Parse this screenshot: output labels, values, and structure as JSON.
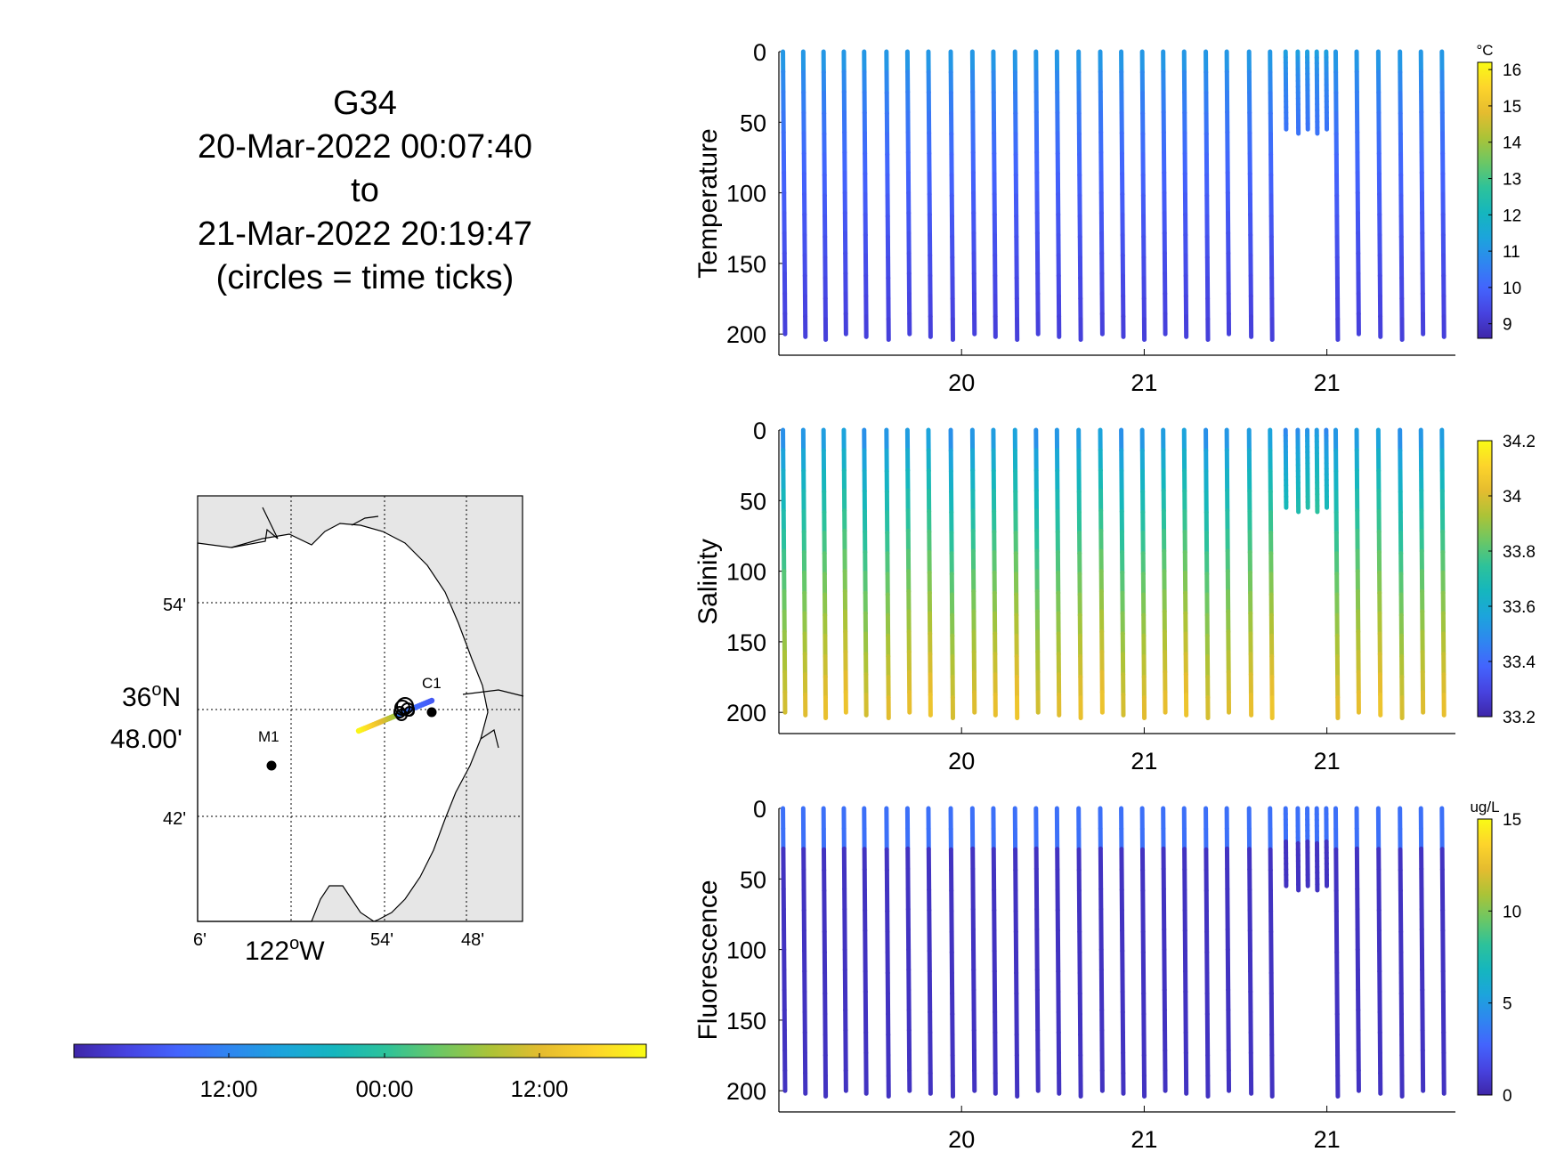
{
  "header": {
    "glider": "G34",
    "start": "20-Mar-2022 00:07:40",
    "to": "to",
    "end": "21-Mar-2022 20:19:47",
    "note": "(circles = time ticks)"
  },
  "colors": {
    "parula": [
      "#3e26a8",
      "#4743e0",
      "#4364fd",
      "#2f86f0",
      "#1ca4dc",
      "#15b6be",
      "#2dc29a",
      "#6bc765",
      "#abc337",
      "#e5bc2f",
      "#fdd42b",
      "#f9fb15"
    ],
    "map_land": "#e6e6e6",
    "station_dot": "#000000"
  },
  "map": {
    "lat_ticks": [
      "54'",
      "36°N 48.00'",
      "42'"
    ],
    "lat_label_line1": "36",
    "lat_label_sup": "o",
    "lat_label_suffix": "N",
    "lat_label_line2": "48.00'",
    "lon_ticks": [
      "6'",
      "54'",
      "48'"
    ],
    "lon_label_main": "122",
    "lon_label_sup": "o",
    "lon_label_suffix": "W",
    "stations": [
      {
        "name": "C1"
      },
      {
        "name": "M1"
      }
    ]
  },
  "time_colorbar": {
    "ticks": [
      "12:00",
      "00:00",
      "12:00"
    ]
  },
  "chart_data": [
    {
      "type": "scatter",
      "ylabel": "Temperature",
      "colorbar_unit": "°C",
      "colorbar_ticks": [
        "9",
        "10",
        "11",
        "12",
        "13",
        "14",
        "15",
        "16"
      ],
      "clim": [
        8.6,
        16.2
      ],
      "ylim": [
        0,
        215
      ],
      "y_reversed": true,
      "yticks": [
        "0",
        "50",
        "100",
        "150",
        "200"
      ],
      "xticks": [
        "20",
        "21",
        "21"
      ],
      "surface_value": 11.5,
      "deep_value": 9.2
    },
    {
      "type": "scatter",
      "ylabel": "Salinity",
      "colorbar_unit": "",
      "colorbar_ticks": [
        "33.2",
        "33.4",
        "33.6",
        "33.8",
        "34",
        "34.2"
      ],
      "clim": [
        33.2,
        34.2
      ],
      "ylim": [
        0,
        215
      ],
      "y_reversed": true,
      "yticks": [
        "0",
        "50",
        "100",
        "150",
        "200"
      ],
      "xticks": [
        "20",
        "21",
        "21"
      ],
      "surface_value": 33.45,
      "deep_value": 34.0
    },
    {
      "type": "scatter",
      "ylabel": "Fluorescence",
      "colorbar_unit": "ug/L",
      "colorbar_ticks": [
        "0",
        "5",
        "10",
        "15"
      ],
      "clim": [
        0,
        15
      ],
      "ylim": [
        0,
        215
      ],
      "y_reversed": true,
      "yticks": [
        "0",
        "50",
        "100",
        "150",
        "200"
      ],
      "xticks": [
        "20",
        "21",
        "21"
      ],
      "surface_value": 3.2,
      "deep_value": 0.6
    }
  ]
}
